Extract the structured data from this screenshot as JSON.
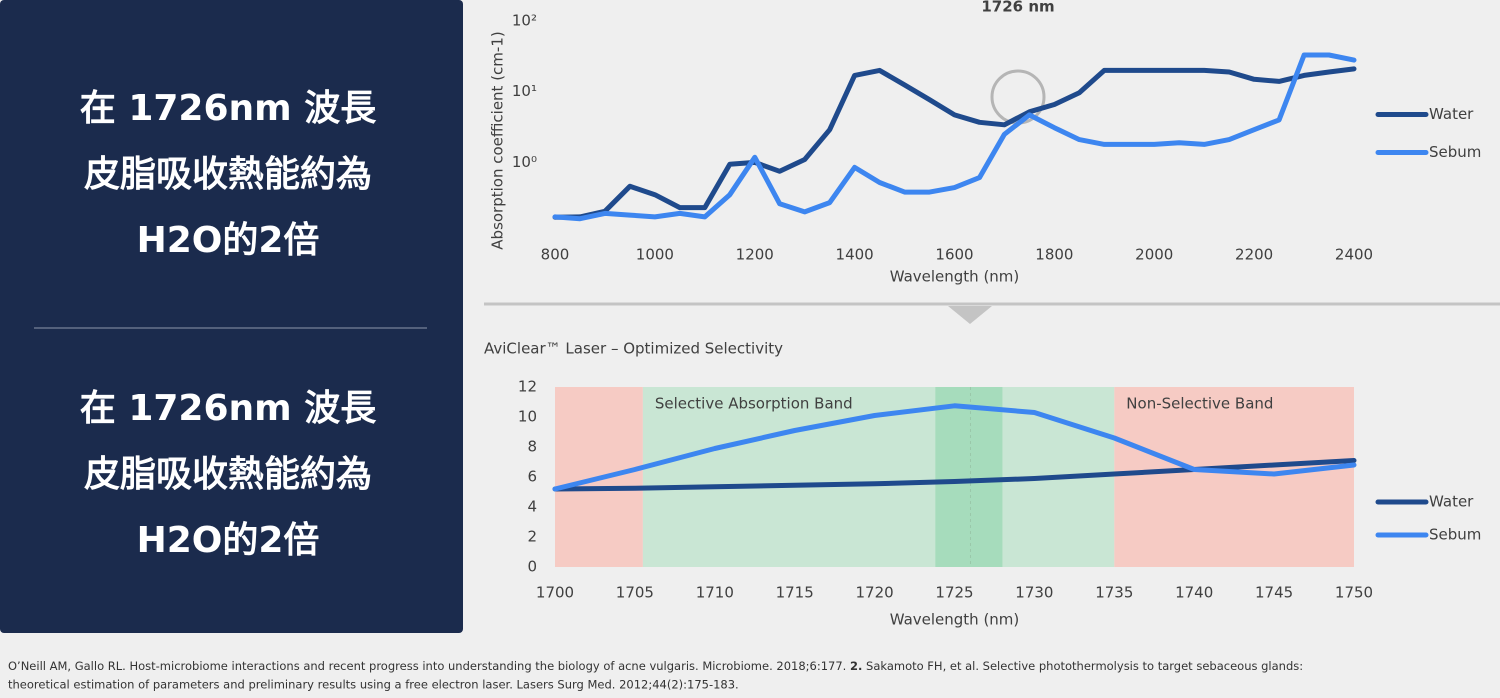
{
  "panel": {
    "blocks": [
      [
        "在 1726nm 波長",
        "皮脂吸收熱能約為",
        "H2O的2倍"
      ],
      [
        "在 1726nm 波長",
        "皮脂吸收熱能約為",
        "H2O的2倍"
      ]
    ]
  },
  "chart_data": [
    {
      "type": "line",
      "annotation": "1726 nm",
      "x_label": "Wavelength (nm)",
      "y_label": "Absorption coefficient (cm-1)",
      "log_y": true,
      "grid": false,
      "legend": "right",
      "xlim": [
        800,
        2400
      ],
      "xticks": [
        800,
        1000,
        1200,
        1400,
        1600,
        1800,
        2000,
        2200,
        2400
      ],
      "ylim": [
        0.08,
        100
      ],
      "yticks": [
        {
          "value": 1,
          "label": "10⁰"
        },
        {
          "value": 10,
          "label": "10¹"
        },
        {
          "value": 100,
          "label": "10²"
        }
      ],
      "x": [
        800,
        850,
        900,
        950,
        1000,
        1050,
        1100,
        1150,
        1200,
        1250,
        1300,
        1350,
        1400,
        1450,
        1500,
        1550,
        1600,
        1650,
        1700,
        1750,
        1800,
        1850,
        1900,
        1950,
        2000,
        2050,
        2100,
        2150,
        2200,
        2250,
        2300,
        2350,
        2400
      ],
      "series": [
        {
          "name": "Water",
          "color": "#1f4a8c",
          "values": [
            0.168,
            0.17,
            0.204,
            0.46,
            0.35,
            0.23,
            0.23,
            0.94,
            1.0,
            0.75,
            1.1,
            2.9,
            17,
            20,
            12.5,
            7.7,
            4.7,
            3.7,
            3.4,
            5.2,
            6.6,
            9.7,
            20,
            20,
            20,
            20,
            20,
            19,
            15,
            14,
            17,
            19,
            21
          ]
        },
        {
          "name": "Sebum",
          "color": "#3d86f0",
          "values": [
            0.17,
            0.16,
            0.19,
            0.18,
            0.17,
            0.19,
            0.17,
            0.35,
            1.18,
            0.26,
            0.2,
            0.27,
            0.85,
            0.52,
            0.38,
            0.38,
            0.44,
            0.61,
            2.5,
            4.7,
            3.1,
            2.1,
            1.8,
            1.8,
            1.8,
            1.9,
            1.8,
            2.1,
            2.9,
            4.0,
            33,
            33,
            28
          ]
        }
      ]
    },
    {
      "type": "line",
      "title": "AviClear™ Laser – Optimized Selectivity",
      "x_label": "Wavelength (nm)",
      "log_y": false,
      "grid": false,
      "legend": "right",
      "xlim": [
        1700,
        1750
      ],
      "xticks": [
        1700,
        1705,
        1710,
        1715,
        1720,
        1725,
        1730,
        1735,
        1740,
        1745,
        1750
      ],
      "ylim": [
        0,
        12
      ],
      "yticks": [
        0,
        2,
        4,
        6,
        8,
        10,
        12
      ],
      "bands": [
        {
          "from": 1700,
          "to": 1705.5,
          "color": "#f6cbc4"
        },
        {
          "from": 1705.5,
          "to": 1735,
          "color": "#c9e6d4",
          "label": "Selective Absorption Band"
        },
        {
          "from": 1723.8,
          "to": 1728,
          "color": "#a6dcbc"
        },
        {
          "from": 1735,
          "to": 1750,
          "color": "#f6cbc4",
          "label": "Non-Selective Band"
        }
      ],
      "vline": 1726,
      "x": [
        1700,
        1705,
        1710,
        1715,
        1720,
        1725,
        1730,
        1735,
        1740,
        1745,
        1750
      ],
      "series": [
        {
          "name": "Water",
          "color": "#1f4a8c",
          "values": [
            5.2,
            5.25,
            5.35,
            5.45,
            5.55,
            5.7,
            5.9,
            6.2,
            6.5,
            6.8,
            7.1
          ]
        },
        {
          "name": "Sebum",
          "color": "#3d86f0",
          "values": [
            5.2,
            6.5,
            7.9,
            9.1,
            10.1,
            10.75,
            10.3,
            8.6,
            6.5,
            6.2,
            6.8
          ]
        }
      ]
    }
  ],
  "footer": {
    "line1": "O’Neill AM, Gallo RL. Host-microbiome interactions and recent progress into understanding the biology of acne vulgaris. Microbiome. 2018;6:177.",
    "ref_number": "2.",
    "line1_rest": "Sakamoto FH, et al. Selective photothermolysis to target sebaceous glands:",
    "line2": "theoretical estimation of parameters and preliminary results using a free electron laser. Lasers Surg Med. 2012;44(2):175-183."
  }
}
